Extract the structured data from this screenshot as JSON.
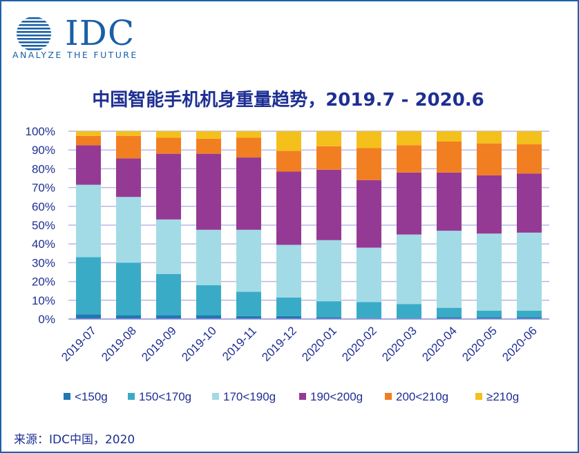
{
  "logo": {
    "name": "IDC",
    "tagline": "ANALYZE THE FUTURE"
  },
  "source": "来源：IDC中国，2020",
  "chart_data": {
    "type": "bar",
    "stacked": true,
    "title": "中国智能手机机身重量趋势，2019.7 - 2020.6",
    "xlabel": "",
    "ylabel": "",
    "ylim": [
      0,
      100
    ],
    "y_ticks": [
      "0%",
      "10%",
      "20%",
      "30%",
      "40%",
      "50%",
      "60%",
      "70%",
      "80%",
      "90%",
      "100%"
    ],
    "grid": true,
    "legend_position": "bottom",
    "categories": [
      "2019-07",
      "2019-08",
      "2019-09",
      "2019-10",
      "2019-11",
      "2019-12",
      "2020-01",
      "2020-02",
      "2020-03",
      "2020-04",
      "2020-05",
      "2020-06"
    ],
    "series": [
      {
        "name": "<150g",
        "color": "#1f77b4",
        "values": [
          2.5,
          2,
          2,
          2,
          1.5,
          1.5,
          1,
          0.5,
          0.5,
          1,
          1,
          1
        ]
      },
      {
        "name": "150<170g",
        "color": "#3aabc7",
        "values": [
          30.5,
          28,
          22,
          16,
          13,
          10,
          8.5,
          8.5,
          7.5,
          5,
          3.5,
          3.5
        ]
      },
      {
        "name": "170<190g",
        "color": "#a2dbe6",
        "values": [
          38.5,
          35,
          29,
          29.5,
          33,
          28,
          32.5,
          29,
          37,
          41,
          41,
          41.5
        ]
      },
      {
        "name": "190<200g",
        "color": "#953a94",
        "values": [
          21,
          20.5,
          35,
          40.5,
          38.5,
          39,
          37.5,
          36,
          33,
          31,
          31,
          31.5
        ]
      },
      {
        "name": "200<210g",
        "color": "#f27e22",
        "values": [
          5,
          12,
          8.5,
          8,
          10.5,
          11,
          12.5,
          17,
          14.5,
          16.5,
          17,
          15.5
        ]
      },
      {
        "name": "≥210g",
        "color": "#f4c01b",
        "values": [
          2.5,
          2.5,
          3.5,
          4,
          3.5,
          10.5,
          8,
          9,
          7.5,
          5.5,
          6.5,
          7
        ]
      }
    ]
  }
}
